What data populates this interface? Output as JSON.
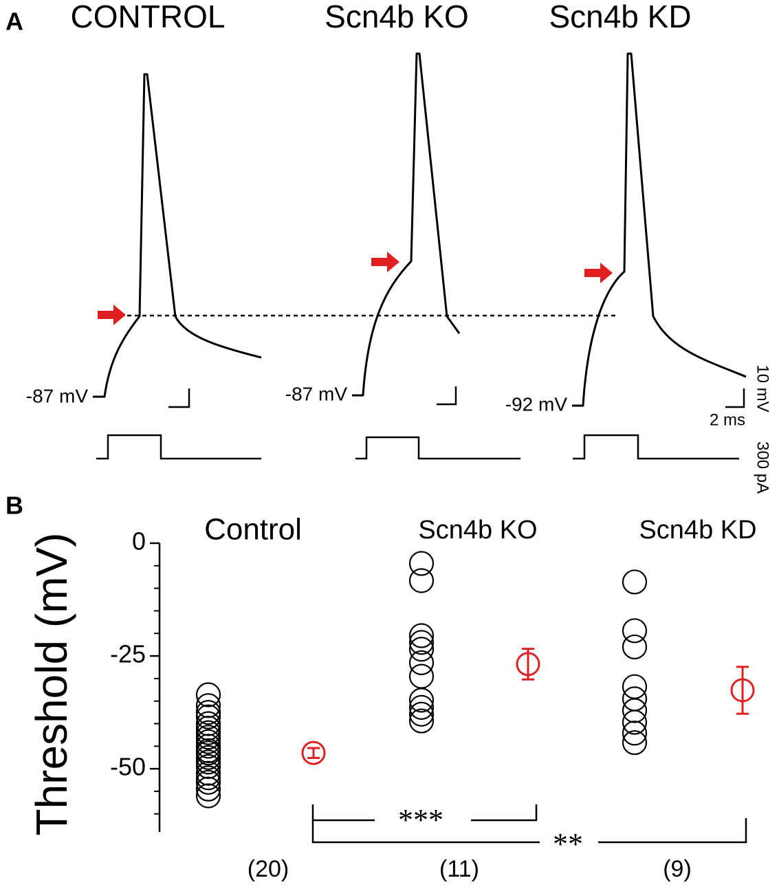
{
  "panel_a": {
    "label": "A",
    "titles": [
      "CONTROL",
      "Scn4b KO",
      "Scn4b KD"
    ],
    "rest_labels": [
      "-87 mV",
      "-87 mV",
      "-92 mV"
    ],
    "scale_voltage": "10 mV",
    "scale_time": "2 ms",
    "scale_current": "300 pA"
  },
  "chart_data": {
    "type": "scatter",
    "label": "B",
    "y_label": "Threshold (mV)",
    "ylim": [
      -64,
      0
    ],
    "yticks": [
      0,
      -25,
      -50
    ],
    "minor_yticks": [
      -5,
      -10,
      -15,
      -20,
      -30,
      -35,
      -40,
      -45,
      -55,
      -60
    ],
    "point_color": "#000000",
    "mean_color": "#e02020",
    "groups": [
      {
        "label": "Control",
        "n_label": "(20)",
        "values": [
          -33.6,
          -36,
          -37.5,
          -38.5,
          -40,
          -41,
          -42,
          -43,
          -44,
          -45,
          -46,
          -46.5,
          -47.5,
          -48.5,
          -49.5,
          -51,
          -52,
          -53,
          -54.5,
          -56
        ],
        "mean": -46.5,
        "error": 1.1
      },
      {
        "label": "Scn4b KO",
        "n_label": "(11)",
        "values": [
          -4.5,
          -8.3,
          -20.5,
          -22,
          -23.5,
          -26.5,
          -29.5,
          -34.8,
          -36.4,
          -37.9,
          -39.4
        ],
        "mean": -26.8,
        "error": 3.4
      },
      {
        "label": "Scn4b KD",
        "n_label": "(9)",
        "values": [
          -8.6,
          -19.4,
          -23,
          -31.8,
          -34.5,
          -37.1,
          -39.7,
          -42.1,
          -44.2
        ],
        "mean": -32.6,
        "error": 5.2
      }
    ],
    "significance": [
      "***",
      "**"
    ]
  }
}
